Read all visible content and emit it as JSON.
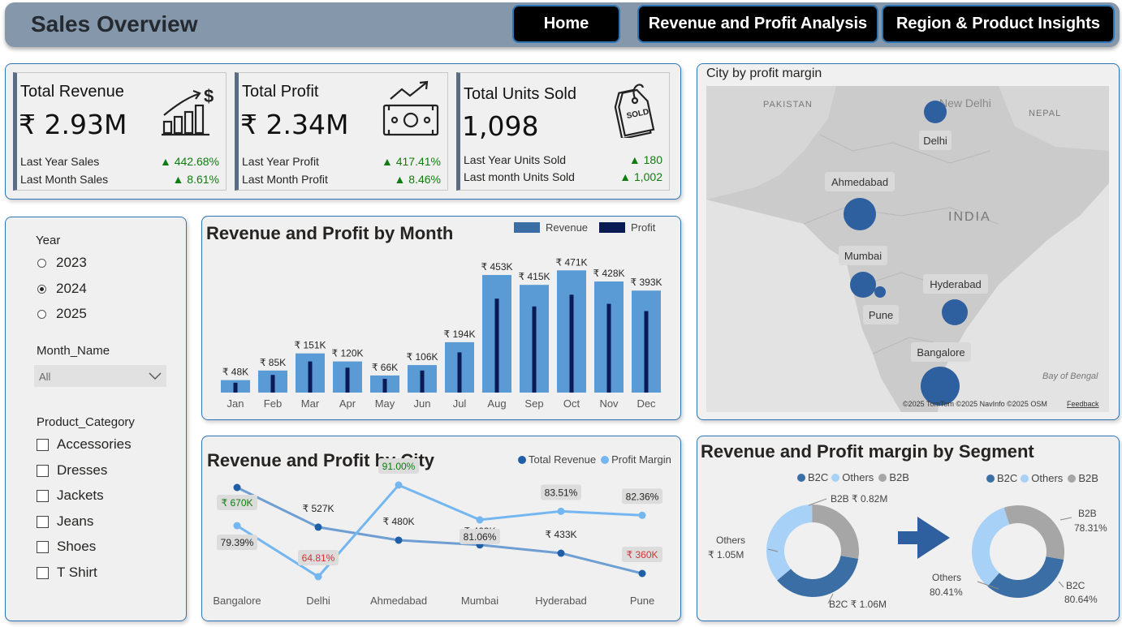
{
  "header": {
    "title": "Sales Overview",
    "nav": [
      "Home",
      "Revenue and Profit Analysis",
      "Region & Product Insights"
    ]
  },
  "kpis": [
    {
      "title": "Total Revenue",
      "value": "₹ 2.93M",
      "row1_label": "Last Year Sales",
      "row1_delta": "▲ 442.68%",
      "row2_label": "Last Month Sales",
      "row2_delta": "▲ 8.61%",
      "icon": "money-growth-icon"
    },
    {
      "title": "Total Profit",
      "value": "₹ 2.34M",
      "row1_label": "Last Year Profit",
      "row1_delta": "▲ 417.41%",
      "row2_label": "Last Month Profit",
      "row2_delta": "▲ 8.46%",
      "icon": "cash-trend-icon"
    },
    {
      "title": "Total Units Sold",
      "value": "1,098",
      "row1_label": "Last Year Units Sold",
      "row1_delta": "▲ 180",
      "row2_label": "Last month Units Sold",
      "row2_delta": "▲ 1,002",
      "icon": "sold-tag-icon"
    }
  ],
  "slicers": {
    "year": {
      "label": "Year",
      "options": [
        "2023",
        "2024",
        "2025"
      ],
      "selected": "2024"
    },
    "month": {
      "label": "Month_Name",
      "value": "All"
    },
    "category": {
      "label": "Product_Category",
      "options": [
        "Accessories",
        "Dresses",
        "Jackets",
        "Jeans",
        "Shoes",
        "T Shirt"
      ]
    }
  },
  "map": {
    "title": "City by profit margin",
    "base_labels": [
      "PAKISTAN",
      "New Delhi",
      "NEPAL",
      "INDIA",
      "Bay of Bengal"
    ],
    "cities": [
      "Delhi",
      "Ahmedabad",
      "Mumbai",
      "Hyderabad",
      "Pune",
      "Bangalore"
    ],
    "attribution": "©2025 TomTom  ©2025 NavInfo  ©2025 OSM",
    "feedback": "Feedback",
    "colors": {
      "bubble": "#2e5f9e",
      "land": "#c8c8c8",
      "water": "#e2e2e2"
    }
  },
  "month_chart": {
    "title": "Revenue and Profit by Month",
    "legend": [
      "Revenue",
      "Profit"
    ],
    "colors": {
      "revenue": "#5b9bd5",
      "profit": "#0a1a55"
    }
  },
  "city_chart": {
    "title": "Revenue and Profit by City",
    "legend": [
      "Total Revenue",
      "Profit Margin"
    ],
    "colors": {
      "revenue": "#1f5fa8",
      "revenue_line": "#6f9fd2",
      "margin": "#74b6f0"
    }
  },
  "segment_chart": {
    "title": "Revenue and Profit margin by Segment",
    "legend": [
      "B2C",
      "Others",
      "B2B"
    ],
    "colors": {
      "B2C": "#3a6ea5",
      "Others": "#a7d1f7",
      "B2B": "#a6a6a6"
    },
    "left_labels": {
      "B2B": "B2B ₹ 0.82M",
      "Others_1": "Others",
      "Others_2": "₹ 1.05M",
      "B2C": "B2C ₹ 1.06M"
    },
    "right_labels": {
      "B2B_1": "B2B",
      "B2B_2": "78.31%",
      "Others_1": "Others",
      "Others_2": "80.41%",
      "B2C_1": "B2C",
      "B2C_2": "80.64%"
    }
  },
  "chart_data": [
    {
      "type": "bar",
      "title": "Revenue and Profit by Month",
      "categories": [
        "Jan",
        "Feb",
        "Mar",
        "Apr",
        "May",
        "Jun",
        "Jul",
        "Aug",
        "Sep",
        "Oct",
        "Nov",
        "Dec"
      ],
      "series": [
        {
          "name": "Revenue",
          "values": [
            48,
            85,
            151,
            120,
            66,
            106,
            194,
            453,
            415,
            471,
            428,
            393
          ],
          "labels": [
            "₹ 48K",
            "₹ 85K",
            "₹ 151K",
            "₹ 120K",
            "₹ 66K",
            "₹ 106K",
            "₹ 194K",
            "₹ 453K",
            "₹ 415K",
            "₹ 471K",
            "₹ 428K",
            "₹ 393K"
          ]
        },
        {
          "name": "Profit",
          "values": [
            38,
            68,
            120,
            96,
            53,
            85,
            155,
            362,
            332,
            377,
            342,
            314
          ]
        }
      ],
      "unit": "K"
    },
    {
      "type": "line",
      "title": "Revenue and Profit by City",
      "categories": [
        "Bangalore",
        "Delhi",
        "Ahmedabad",
        "Mumbai",
        "Hyderabad",
        "Pune"
      ],
      "series": [
        {
          "name": "Total Revenue",
          "values": [
            670,
            527,
            480,
            463,
            433,
            360
          ],
          "labels": [
            "₹ 670K",
            "₹ 527K",
            "₹ 480K",
            "₹ 463K",
            "₹ 433K",
            "₹ 360K"
          ]
        },
        {
          "name": "Profit Margin",
          "values": [
            79.39,
            64.81,
            91.0,
            81.06,
            83.51,
            82.36
          ],
          "labels": [
            "79.39%",
            "64.81%",
            "91.00%",
            "81.06%",
            "83.51%",
            "82.36%"
          ]
        }
      ],
      "highlight": {
        "max_color": "#107c10",
        "min_color": "#d13438"
      }
    },
    {
      "type": "pie",
      "title": "Revenue by Segment",
      "categories": [
        "B2C",
        "Others",
        "B2B"
      ],
      "values": [
        1.06,
        1.05,
        0.82
      ],
      "unit": "₹ M"
    },
    {
      "type": "pie",
      "title": "Profit margin by Segment",
      "categories": [
        "B2C",
        "Others",
        "B2B"
      ],
      "values": [
        80.64,
        80.41,
        78.31
      ],
      "unit": "%"
    }
  ]
}
